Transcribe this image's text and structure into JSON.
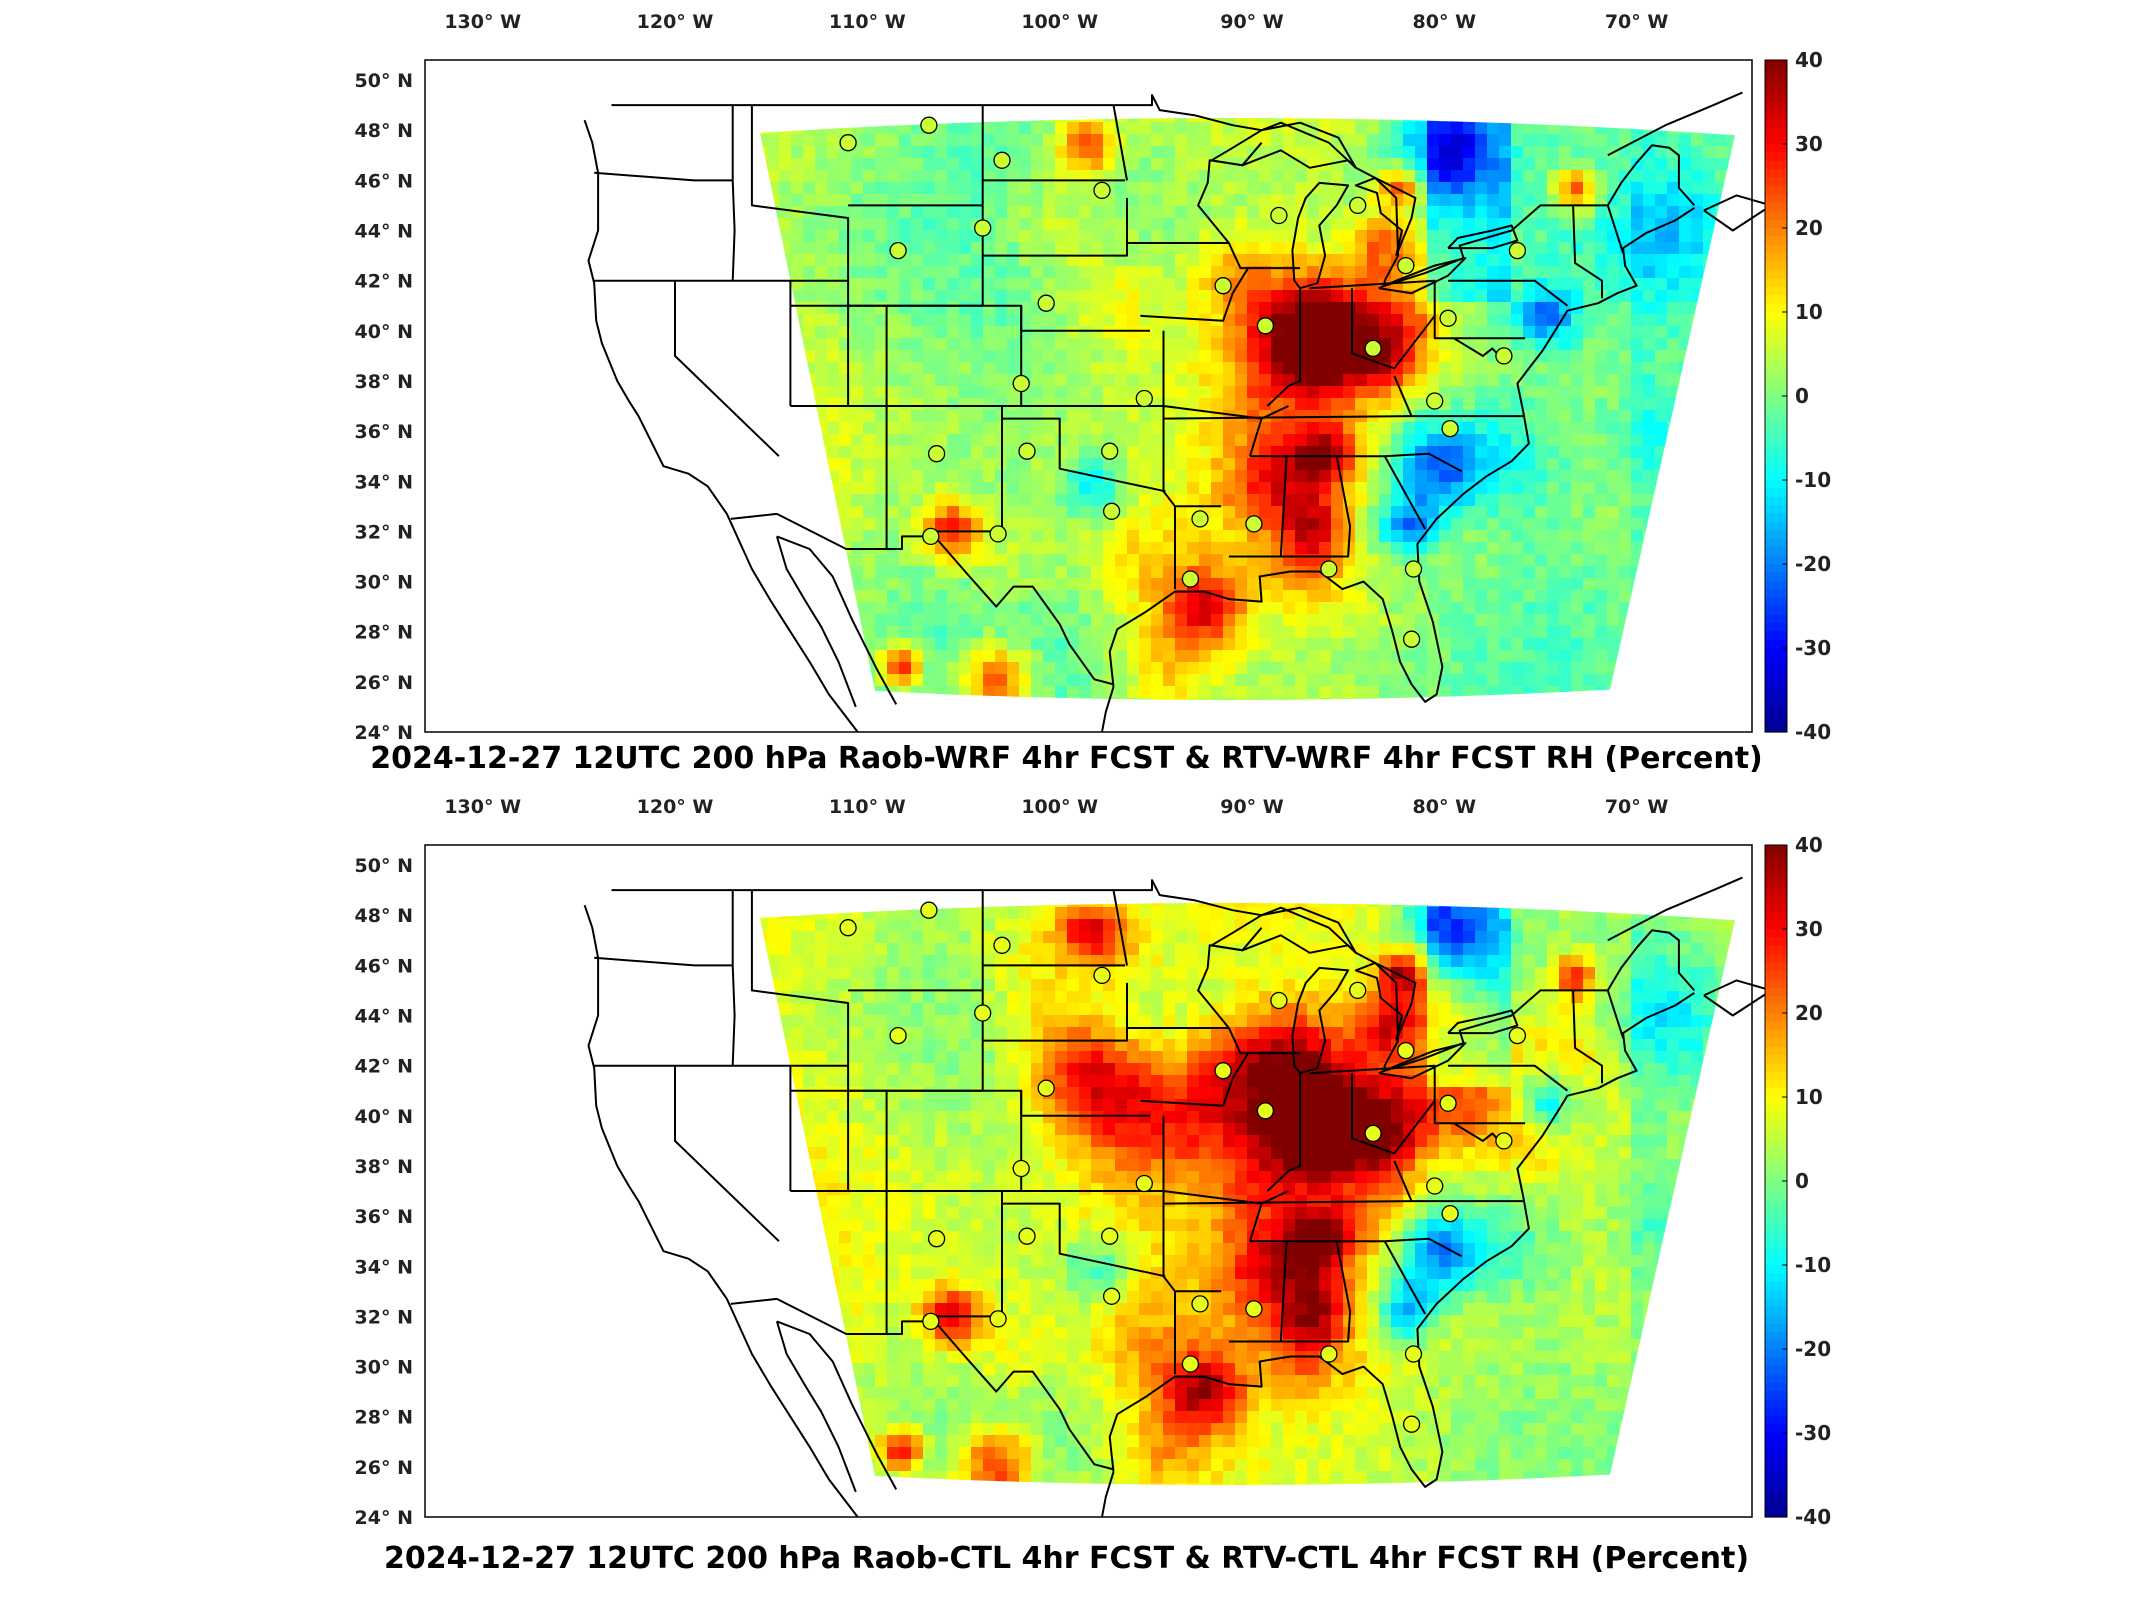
{
  "colormap": [
    "#00008f",
    "#0000ff",
    "#0080ff",
    "#00ffff",
    "#80ff80",
    "#ffff00",
    "#ff8000",
    "#ff0000",
    "#800000"
  ],
  "panels": [
    {
      "title": "2024-12-27 12UTC 200 hPa Raob-WRF 4hr FCST & RTV-WRF 4hr FCST RH (Percent)",
      "variant": "wrf"
    },
    {
      "title": "2024-12-27 12UTC 200 hPa Raob-CTL 4hr FCST & RTV-CTL 4hr FCST RH (Percent)",
      "variant": "ctl"
    }
  ],
  "lon_labels": [
    "130° W",
    "120° W",
    "110° W",
    "100° W",
    "90° W",
    "80° W",
    "70° W"
  ],
  "lon_values": [
    -130,
    -120,
    -110,
    -100,
    -90,
    -80,
    -70
  ],
  "lat_labels": [
    "50° N",
    "48° N",
    "46° N",
    "44° N",
    "42° N",
    "40° N",
    "38° N",
    "36° N",
    "34° N",
    "32° N",
    "30° N",
    "28° N",
    "26° N",
    "24° N"
  ],
  "lat_values": [
    50,
    48,
    46,
    44,
    42,
    40,
    38,
    36,
    34,
    32,
    30,
    28,
    26,
    24
  ],
  "colorbar": {
    "min": -40,
    "max": 40,
    "ticks": [
      "40",
      "30",
      "20",
      "10",
      "0",
      "-10",
      "-20",
      "-30",
      "-40"
    ]
  },
  "stations": [
    {
      "lon": -111.0,
      "lat": 47.5
    },
    {
      "lon": -106.8,
      "lat": 48.2
    },
    {
      "lon": -103.0,
      "lat": 46.8
    },
    {
      "lon": -97.8,
      "lat": 45.6
    },
    {
      "lon": -88.6,
      "lat": 44.6
    },
    {
      "lon": -84.5,
      "lat": 45.0
    },
    {
      "lon": -104.0,
      "lat": 44.1
    },
    {
      "lon": -108.4,
      "lat": 43.2
    },
    {
      "lon": -82.0,
      "lat": 42.6
    },
    {
      "lon": -76.2,
      "lat": 43.2
    },
    {
      "lon": -100.7,
      "lat": 41.1
    },
    {
      "lon": -91.5,
      "lat": 41.8
    },
    {
      "lon": -89.3,
      "lat": 40.2
    },
    {
      "lon": -83.7,
      "lat": 39.3
    },
    {
      "lon": -79.8,
      "lat": 40.5
    },
    {
      "lon": -102.0,
      "lat": 37.9
    },
    {
      "lon": -95.6,
      "lat": 37.3
    },
    {
      "lon": -80.5,
      "lat": 37.2
    },
    {
      "lon": -79.7,
      "lat": 36.1
    },
    {
      "lon": -106.4,
      "lat": 35.1
    },
    {
      "lon": -101.7,
      "lat": 35.2
    },
    {
      "lon": -97.4,
      "lat": 35.2
    },
    {
      "lon": -97.3,
      "lat": 32.8
    },
    {
      "lon": -92.7,
      "lat": 32.5
    },
    {
      "lon": -89.9,
      "lat": 32.3
    },
    {
      "lon": -103.2,
      "lat": 31.9
    },
    {
      "lon": -106.7,
      "lat": 31.8
    },
    {
      "lon": -93.2,
      "lat": 30.1
    },
    {
      "lon": -86.0,
      "lat": 30.5
    },
    {
      "lon": -81.6,
      "lat": 30.5
    },
    {
      "lon": -81.7,
      "lat": 27.7
    },
    {
      "lon": -76.9,
      "lat": 39.0
    }
  ]
}
